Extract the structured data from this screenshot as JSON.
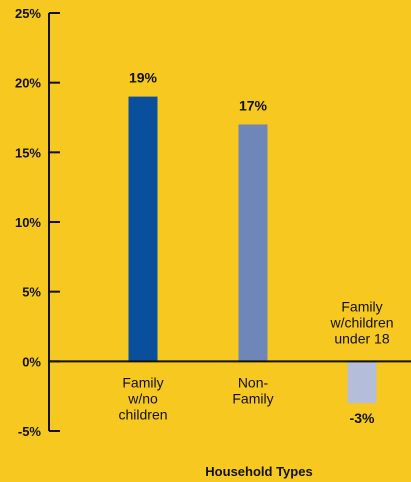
{
  "chart_data": {
    "type": "bar",
    "title": "",
    "xlabel": "Household Types",
    "ylabel": "",
    "ylim": [
      -5,
      25
    ],
    "y_ticks": [
      "25%",
      "20%",
      "15%",
      "10%",
      "5%",
      "0%",
      "-5%"
    ],
    "y_tick_values": [
      25,
      20,
      15,
      10,
      5,
      0,
      -5
    ],
    "categories": [
      [
        "Family",
        "w/no",
        "children"
      ],
      [
        "Non-",
        "Family"
      ],
      [
        "Family",
        "w/children",
        "under 18"
      ]
    ],
    "values": [
      19,
      17,
      -3
    ],
    "data_labels": [
      "19%",
      "17%",
      "-3%"
    ],
    "bar_colors": [
      "#0A4F9C",
      "#6E86B8",
      "#B4BDDA"
    ],
    "grid": false,
    "legend": "none"
  },
  "colors": {
    "background": "#F6C820",
    "axis": "#111111",
    "text": "#111111"
  }
}
